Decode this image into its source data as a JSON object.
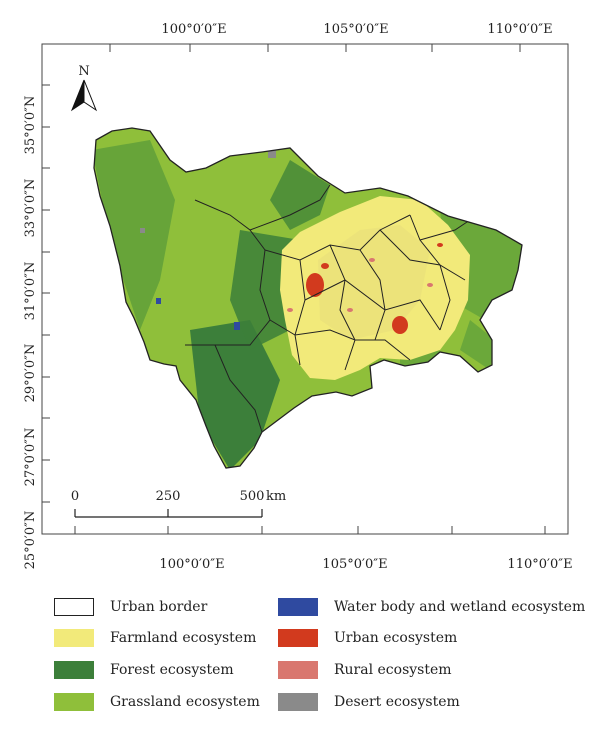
{
  "map": {
    "north_label": "N",
    "top_lon_labels": [
      "100°0′0″E",
      "105°0′0″E",
      "110°0′0″E"
    ],
    "bottom_lon_labels": [
      "100°0′0″E",
      "105°0′0″E",
      "110°0′0″E"
    ],
    "lat_labels": [
      "35°0′0″N",
      "33°0′0″N",
      "31°0′0″N",
      "29°0′0″N",
      "27°0′0″N",
      "25°0′0″N"
    ],
    "scale": {
      "ticks": [
        "0",
        "250",
        "500"
      ],
      "unit": "km"
    }
  },
  "legend": [
    {
      "label": "Urban border",
      "color": "#ffffff",
      "border": "#222222"
    },
    {
      "label": "Farmland ecosystem",
      "color": "#f2ea7a"
    },
    {
      "label": "Forest ecosystem",
      "color": "#3c7f3a"
    },
    {
      "label": "Grassland ecosystem",
      "color": "#8fbf3a"
    },
    {
      "label": "Water body and wetland ecosystem",
      "color": "#2f4aa0"
    },
    {
      "label": "Urban ecosystem",
      "color": "#d23a1e"
    },
    {
      "label": "Rural ecosystem",
      "color": "#d9776f"
    },
    {
      "label": "Desert ecosystem",
      "color": "#8a8a8a"
    }
  ]
}
